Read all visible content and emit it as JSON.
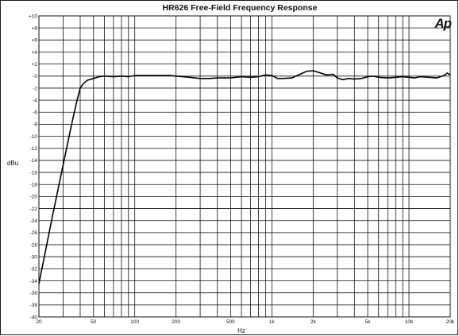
{
  "chart_data": {
    "type": "line",
    "title": "HR626 Free-Field Frequency Response",
    "xlabel": "Hz",
    "ylabel": "dBu",
    "logo": "Ap",
    "x_scale": "log",
    "xlim": [
      20,
      20000
    ],
    "ylim": [
      -40,
      10
    ],
    "grid": true,
    "x_tick_labels": [
      {
        "value": 20,
        "label": "20"
      },
      {
        "value": 50,
        "label": "50"
      },
      {
        "value": 100,
        "label": "100"
      },
      {
        "value": 200,
        "label": "200"
      },
      {
        "value": 500,
        "label": "500"
      },
      {
        "value": 1000,
        "label": "1k"
      },
      {
        "value": 2000,
        "label": "2k"
      },
      {
        "value": 5000,
        "label": "5k"
      },
      {
        "value": 10000,
        "label": "10k"
      },
      {
        "value": 20000,
        "label": "20k"
      }
    ],
    "y_tick_labels": [
      "+10",
      "+8",
      "+6",
      "+4",
      "+2",
      "-0",
      "-2",
      "-4",
      "-6",
      "-8",
      "-10",
      "-12",
      "-14",
      "-16",
      "-18",
      "-20",
      "-22",
      "-24",
      "-26",
      "-28",
      "-30",
      "-32",
      "-34",
      "-36",
      "-38",
      "-40"
    ],
    "series": [
      {
        "x": [
          20,
          25,
          30,
          35,
          38,
          40,
          42,
          45,
          50,
          55,
          60,
          70,
          80,
          90,
          100,
          120,
          150,
          180,
          200,
          250,
          300,
          350,
          400,
          500,
          600,
          700,
          800,
          900,
          1000,
          1100,
          1200,
          1400,
          1600,
          1800,
          2000,
          2200,
          2500,
          2800,
          3000,
          3300,
          3600,
          4000,
          4500,
          5000,
          5500,
          6000,
          7000,
          8000,
          9000,
          10000,
          11000,
          12000,
          14000,
          16000,
          18000,
          19000,
          20000
        ],
        "y": [
          -34.5,
          -23.5,
          -14.8,
          -7.5,
          -4,
          -2,
          -1.3,
          -0.7,
          -0.4,
          -0.1,
          0,
          -0.1,
          0,
          -0.1,
          0.1,
          0.1,
          0.1,
          0.1,
          0,
          -0.2,
          -0.4,
          -0.4,
          -0.3,
          -0.3,
          -0.1,
          -0.2,
          -0.1,
          0.2,
          0.1,
          -0.4,
          -0.4,
          -0.3,
          0.3,
          0.8,
          0.9,
          0.6,
          0.2,
          0.3,
          -0.3,
          -0.6,
          -0.4,
          -0.5,
          -0.4,
          -0.1,
          0,
          -0.2,
          -0.3,
          -0.2,
          -0.1,
          -0.2,
          -0.3,
          -0.1,
          -0.2,
          -0.3,
          0.1,
          0.5,
          0.2
        ]
      }
    ]
  }
}
